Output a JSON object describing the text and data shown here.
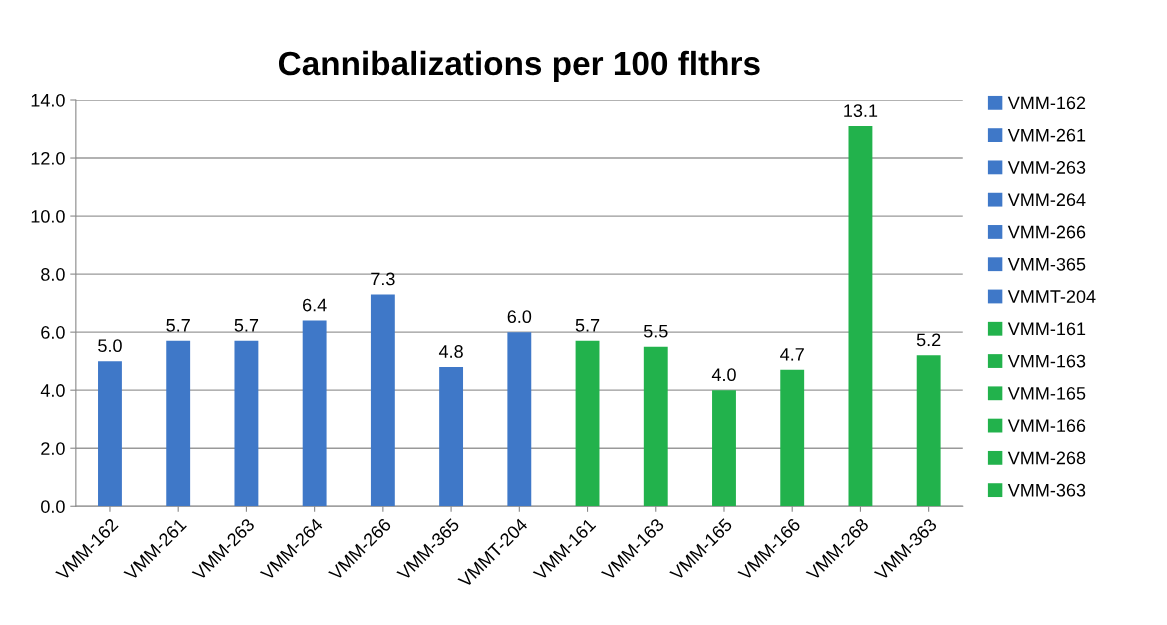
{
  "chart_data": {
    "type": "bar",
    "title": "Cannibalizations per 100 flthrs",
    "stacked": true,
    "categories": [
      "VMM-162",
      "VMM-261",
      "VMM-263",
      "VMM-264",
      "VMM-266",
      "VMM-365",
      "VMMT-204",
      "VMM-161",
      "VMM-163",
      "VMM-165",
      "VMM-166",
      "VMM-268",
      "VMM-363"
    ],
    "series": [
      {
        "name": "VMM-162",
        "color": "#3f78c8",
        "values": [
          5.0,
          null,
          null,
          null,
          null,
          null,
          null,
          null,
          null,
          null,
          null,
          null,
          null
        ],
        "value_labels": [
          "5.0",
          null,
          null,
          null,
          null,
          null,
          null,
          null,
          null,
          null,
          null,
          null,
          null
        ]
      },
      {
        "name": "VMM-261",
        "color": "#3f78c8",
        "values": [
          null,
          5.7,
          null,
          null,
          null,
          null,
          null,
          null,
          null,
          null,
          null,
          null,
          null
        ],
        "value_labels": [
          null,
          "5.7",
          null,
          null,
          null,
          null,
          null,
          null,
          null,
          null,
          null,
          null,
          null
        ]
      },
      {
        "name": "VMM-263",
        "color": "#3f78c8",
        "values": [
          null,
          null,
          5.7,
          null,
          null,
          null,
          null,
          null,
          null,
          null,
          null,
          null,
          null
        ],
        "value_labels": [
          null,
          null,
          "5.7",
          null,
          null,
          null,
          null,
          null,
          null,
          null,
          null,
          null,
          null
        ]
      },
      {
        "name": "VMM-264",
        "color": "#3f78c8",
        "values": [
          null,
          null,
          null,
          6.4,
          null,
          null,
          null,
          null,
          null,
          null,
          null,
          null,
          null
        ],
        "value_labels": [
          null,
          null,
          null,
          "6.4",
          null,
          null,
          null,
          null,
          null,
          null,
          null,
          null,
          null
        ]
      },
      {
        "name": "VMM-266",
        "color": "#3f78c8",
        "values": [
          null,
          null,
          null,
          null,
          7.3,
          null,
          null,
          null,
          null,
          null,
          null,
          null,
          null
        ],
        "value_labels": [
          null,
          null,
          null,
          null,
          "7.3",
          null,
          null,
          null,
          null,
          null,
          null,
          null,
          null
        ]
      },
      {
        "name": "VMM-365",
        "color": "#3f78c8",
        "values": [
          null,
          null,
          null,
          null,
          null,
          4.8,
          null,
          null,
          null,
          null,
          null,
          null,
          null
        ],
        "value_labels": [
          null,
          null,
          null,
          null,
          null,
          "4.8",
          null,
          null,
          null,
          null,
          null,
          null,
          null
        ]
      },
      {
        "name": "VMMT-204",
        "color": "#3f78c8",
        "values": [
          null,
          null,
          null,
          null,
          null,
          null,
          6.0,
          null,
          null,
          null,
          null,
          null,
          null
        ],
        "value_labels": [
          null,
          null,
          null,
          null,
          null,
          null,
          "6.0",
          null,
          null,
          null,
          null,
          null,
          null
        ]
      },
      {
        "name": "VMM-161",
        "color": "#22b24c",
        "values": [
          null,
          null,
          null,
          null,
          null,
          null,
          null,
          5.7,
          null,
          null,
          null,
          null,
          null
        ],
        "value_labels": [
          null,
          null,
          null,
          null,
          null,
          null,
          null,
          "5.7",
          null,
          null,
          null,
          null,
          null
        ]
      },
      {
        "name": "VMM-163",
        "color": "#22b24c",
        "values": [
          null,
          null,
          null,
          null,
          null,
          null,
          null,
          null,
          5.5,
          null,
          null,
          null,
          null
        ],
        "value_labels": [
          null,
          null,
          null,
          null,
          null,
          null,
          null,
          null,
          "5.5",
          null,
          null,
          null,
          null
        ]
      },
      {
        "name": "VMM-165",
        "color": "#22b24c",
        "values": [
          null,
          null,
          null,
          null,
          null,
          null,
          null,
          null,
          null,
          4.0,
          null,
          null,
          null
        ],
        "value_labels": [
          null,
          null,
          null,
          null,
          null,
          null,
          null,
          null,
          null,
          "4.0",
          null,
          null,
          null
        ]
      },
      {
        "name": "VMM-166",
        "color": "#22b24c",
        "values": [
          null,
          null,
          null,
          null,
          null,
          null,
          null,
          null,
          null,
          null,
          4.7,
          null,
          null
        ],
        "value_labels": [
          null,
          null,
          null,
          null,
          null,
          null,
          null,
          null,
          null,
          null,
          "4.7",
          null,
          null
        ]
      },
      {
        "name": "VMM-268",
        "color": "#22b24c",
        "values": [
          null,
          null,
          null,
          null,
          null,
          null,
          null,
          null,
          null,
          null,
          null,
          13.1,
          null
        ],
        "value_labels": [
          null,
          null,
          null,
          null,
          null,
          null,
          null,
          null,
          null,
          null,
          null,
          "13.1",
          null
        ]
      },
      {
        "name": "VMM-363",
        "color": "#22b24c",
        "values": [
          null,
          null,
          null,
          null,
          null,
          null,
          null,
          null,
          null,
          null,
          null,
          null,
          5.2
        ],
        "value_labels": [
          null,
          null,
          null,
          null,
          null,
          null,
          null,
          null,
          null,
          null,
          null,
          null,
          "5.2"
        ]
      }
    ],
    "ylim": [
      0,
      14
    ],
    "yticks": [
      {
        "value": 0,
        "label": "0.0"
      },
      {
        "value": 2,
        "label": "2.0"
      },
      {
        "value": 4,
        "label": "4.0"
      },
      {
        "value": 6,
        "label": "6.0"
      },
      {
        "value": 8,
        "label": "8.0"
      },
      {
        "value": 10,
        "label": "10.0"
      },
      {
        "value": 12,
        "label": "12.0"
      },
      {
        "value": 14,
        "label": "14.0"
      }
    ],
    "grid": "y",
    "legend": "right"
  }
}
